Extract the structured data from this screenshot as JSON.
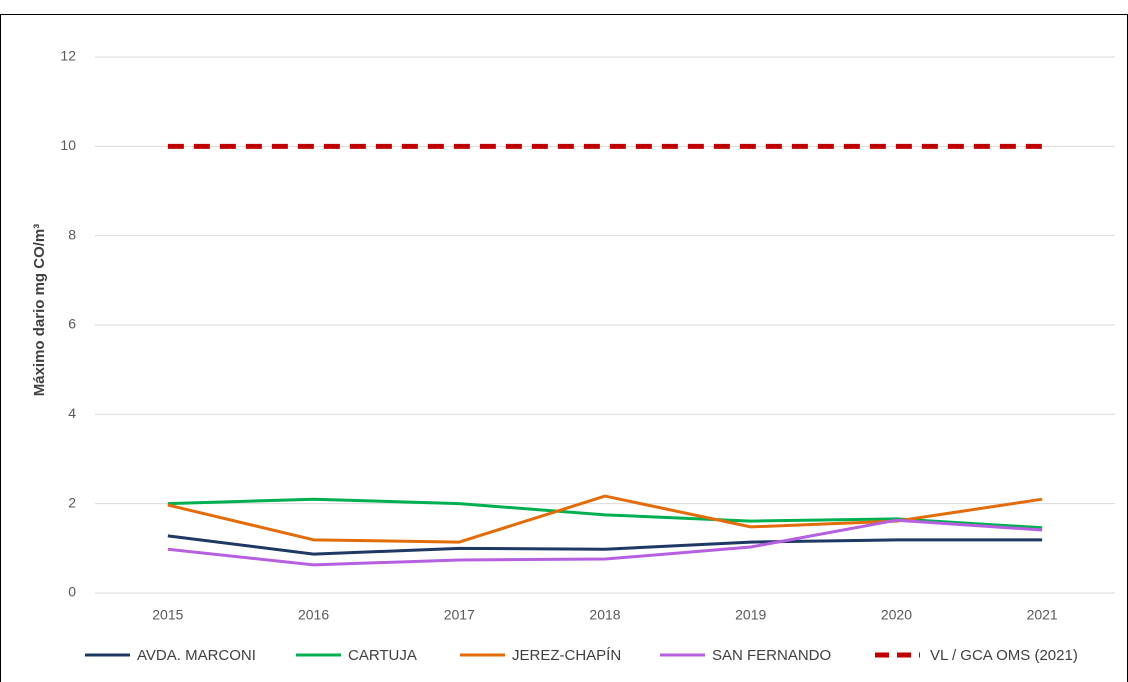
{
  "chart_data": {
    "type": "line",
    "y_label": "Máximo dario  mg CO/m³",
    "categories": [
      "2015",
      "2016",
      "2017",
      "2018",
      "2019",
      "2020",
      "2021"
    ],
    "series": [
      {
        "name": "AVDA. MARCONI",
        "color": "#203864",
        "values": [
          1.28,
          0.87,
          1.0,
          0.98,
          1.14,
          1.19,
          1.19
        ]
      },
      {
        "name": "CARTUJA",
        "color": "#00b050",
        "values": [
          2.0,
          2.1,
          2.0,
          1.75,
          1.61,
          1.66,
          1.46
        ]
      },
      {
        "name": "JEREZ-CHAPÍN",
        "color": "#e36c0a",
        "values": [
          1.97,
          1.19,
          1.14,
          2.17,
          1.48,
          1.61,
          2.1
        ]
      },
      {
        "name": "SAN FERNANDO",
        "color": "#b660e0",
        "values": [
          0.98,
          0.63,
          0.74,
          0.76,
          1.03,
          1.63,
          1.41
        ]
      },
      {
        "name": "VL / GCA OMS (2021)",
        "color": "#c00000",
        "dashed": true,
        "values": [
          10,
          10,
          10,
          10,
          10,
          10,
          10
        ]
      }
    ],
    "ylim": [
      0,
      12
    ],
    "yticks": [
      0,
      2,
      4,
      6,
      8,
      10,
      12
    ],
    "grid": true,
    "legend": "bottom"
  }
}
